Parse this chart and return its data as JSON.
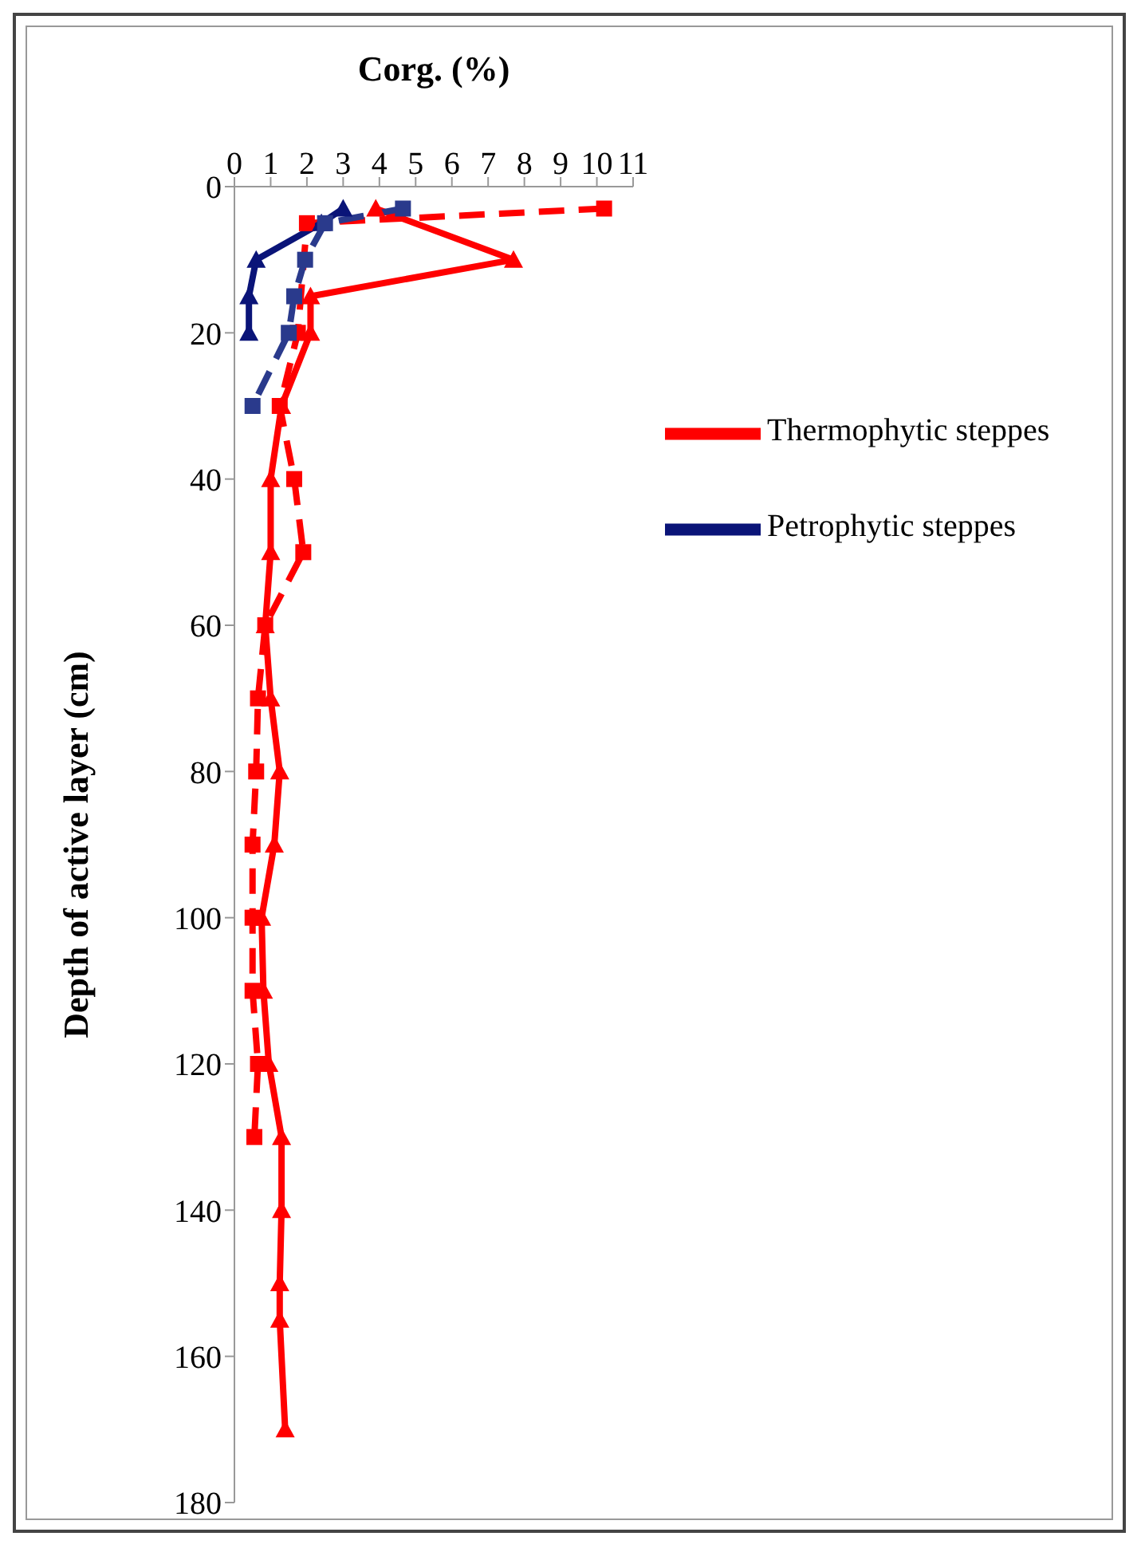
{
  "chart_data": {
    "type": "line",
    "xlabel": "Corg. (%)",
    "ylabel": "Depth of active layer (cm)",
    "xlim": [
      0,
      11
    ],
    "xticks": [
      0,
      1,
      2,
      3,
      4,
      5,
      6,
      7,
      8,
      9,
      10,
      11
    ],
    "ylim": [
      180,
      0
    ],
    "yticks": [
      0,
      20,
      40,
      60,
      80,
      100,
      120,
      140,
      160,
      180
    ],
    "grid": false,
    "legend": "top right",
    "series": [
      {
        "name": "Thermophytic steppes",
        "color": "#ff0000",
        "marker": "triangle",
        "line_style": "solid",
        "x": [
          3.9,
          7.7,
          2.1,
          2.1,
          1.3,
          1.0,
          1.0,
          0.85,
          1.0,
          1.25,
          1.1,
          0.75,
          0.8,
          0.95,
          1.3,
          1.3,
          1.25,
          1.25,
          1.4
        ],
        "values": [
          3,
          10,
          15,
          20,
          30,
          40,
          50,
          60,
          70,
          80,
          90,
          100,
          110,
          120,
          130,
          140,
          150,
          155,
          170
        ]
      },
      {
        "color": "#ff0000",
        "marker": "square",
        "line_style": "dashed",
        "x": [
          10.2,
          2.0,
          1.75,
          1.25,
          1.65,
          1.9,
          0.85,
          0.65,
          0.6,
          0.5,
          0.5,
          0.5,
          0.65,
          0.55
        ],
        "values": [
          3,
          5,
          20,
          30,
          40,
          50,
          60,
          70,
          80,
          90,
          100,
          110,
          120,
          130
        ]
      },
      {
        "name": "Petrophytic steppes",
        "color": "#0a1478",
        "marker": "triangle",
        "line_style": "solid",
        "x": [
          3.0,
          2.4,
          0.6,
          0.4,
          0.4
        ],
        "values": [
          3,
          5,
          10,
          15,
          20
        ]
      },
      {
        "color": "#2a3a8c",
        "marker": "square",
        "line_style": "dashed",
        "x": [
          4.65,
          2.5,
          1.95,
          1.65,
          1.5,
          0.5
        ],
        "values": [
          3,
          5,
          10,
          15,
          20,
          30
        ]
      }
    ]
  }
}
